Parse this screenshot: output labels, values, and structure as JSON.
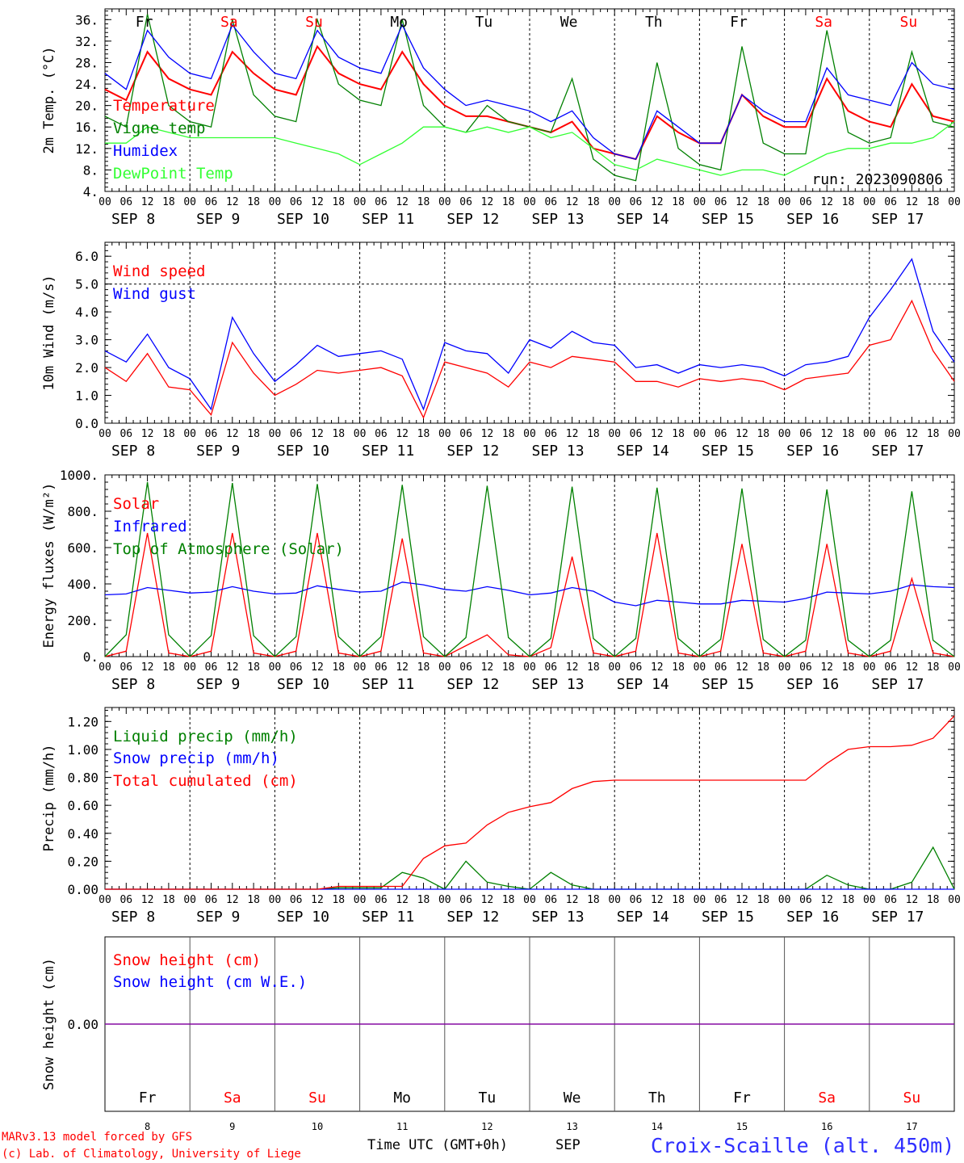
{
  "run_label": "run: 2023090806",
  "footer": {
    "model": "MARv3.13 model forced by GFS",
    "credit": "(c) Lab. of Climatology, University of Liege",
    "axis_title": "Time UTC (GMT+0h)",
    "month": "SEP",
    "station": "Croix-Scaille (alt. 450m)"
  },
  "days": [
    {
      "date": "SEP  8",
      "num": "8",
      "dow": "Fr",
      "weekend": false
    },
    {
      "date": "SEP  9",
      "num": "9",
      "dow": "Sa",
      "weekend": true
    },
    {
      "date": "SEP 10",
      "num": "10",
      "dow": "Su",
      "weekend": true
    },
    {
      "date": "SEP 11",
      "num": "11",
      "dow": "Mo",
      "weekend": false
    },
    {
      "date": "SEP 12",
      "num": "12",
      "dow": "Tu",
      "weekend": false
    },
    {
      "date": "SEP 13",
      "num": "13",
      "dow": "We",
      "weekend": false
    },
    {
      "date": "SEP 14",
      "num": "14",
      "dow": "Th",
      "weekend": false
    },
    {
      "date": "SEP 15",
      "num": "15",
      "dow": "Fr",
      "weekend": false
    },
    {
      "date": "SEP 16",
      "num": "16",
      "dow": "Sa",
      "weekend": true
    },
    {
      "date": "SEP 17",
      "num": "17",
      "dow": "Su",
      "weekend": true
    }
  ],
  "hour_ticks": [
    "00",
    "06",
    "12",
    "18"
  ],
  "final_hour_tick": "00",
  "colors": {
    "red": "#ff0000",
    "green": "#008000",
    "blue": "#0000ff",
    "lightgreen": "#33ff33",
    "purple": "#8000a0"
  },
  "chart_data": [
    {
      "type": "line",
      "ylabel": "2m Temp. (°C)",
      "ylim": [
        4,
        38
      ],
      "yticks": [
        "4.",
        "8.",
        "12.",
        "16.",
        "20.",
        "24.",
        "28.",
        "32.",
        "36."
      ],
      "grid": "vertical dashed at midnight",
      "x": [
        0,
        6,
        12,
        18,
        24,
        30,
        36,
        42,
        48,
        54,
        60,
        66,
        72,
        78,
        84,
        90,
        96,
        102,
        108,
        114,
        120,
        126,
        132,
        138,
        144,
        150,
        156,
        162,
        168,
        174,
        180,
        186,
        192,
        198,
        204,
        210,
        216,
        222,
        228,
        234,
        240
      ],
      "series": [
        {
          "name": "Temperature",
          "color": "red",
          "values": [
            23,
            21,
            30,
            25,
            23,
            22,
            30,
            26,
            23,
            22,
            31,
            26,
            24,
            23,
            30,
            24,
            20,
            18,
            18,
            17,
            16,
            15,
            17,
            12,
            11,
            10,
            18,
            15,
            13,
            13,
            22,
            18,
            16,
            16,
            25,
            19,
            17,
            16,
            24,
            18,
            17
          ]
        },
        {
          "name": "Vigne temp",
          "color": "green",
          "values": [
            18,
            16,
            37,
            20,
            17,
            16,
            36,
            22,
            18,
            17,
            36,
            24,
            21,
            20,
            36,
            20,
            16,
            15,
            20,
            17,
            16,
            15,
            25,
            10,
            7,
            6,
            28,
            12,
            9,
            8,
            31,
            13,
            11,
            11,
            34,
            15,
            13,
            14,
            30,
            17,
            16
          ]
        },
        {
          "name": "Humidex",
          "color": "blue",
          "values": [
            26,
            23,
            34,
            29,
            26,
            25,
            35,
            30,
            26,
            25,
            34,
            29,
            27,
            26,
            35,
            27,
            23,
            20,
            21,
            20,
            19,
            17,
            19,
            14,
            11,
            10,
            19,
            16,
            13,
            13,
            22,
            19,
            17,
            17,
            27,
            22,
            21,
            20,
            28,
            24,
            23
          ]
        },
        {
          "name": "DewPoint Temp",
          "color": "lightgreen",
          "values": [
            13,
            13,
            16,
            15,
            14,
            14,
            14,
            14,
            14,
            13,
            12,
            11,
            9,
            11,
            13,
            16,
            16,
            15,
            16,
            15,
            16,
            14,
            15,
            12,
            9,
            8,
            10,
            9,
            8,
            7,
            8,
            8,
            7,
            9,
            11,
            12,
            12,
            13,
            13,
            14,
            17
          ]
        }
      ]
    },
    {
      "type": "line",
      "ylabel": "10m Wind (m/s)",
      "ylim": [
        0,
        6.5
      ],
      "yticks": [
        "0.0",
        "1.0",
        "2.0",
        "3.0",
        "4.0",
        "5.0",
        "6.0"
      ],
      "grid": "vertical dashed at midnight, horizontal dashed at 5.0",
      "x": [
        0,
        6,
        12,
        18,
        24,
        30,
        36,
        42,
        48,
        54,
        60,
        66,
        72,
        78,
        84,
        90,
        96,
        102,
        108,
        114,
        120,
        126,
        132,
        138,
        144,
        150,
        156,
        162,
        168,
        174,
        180,
        186,
        192,
        198,
        204,
        210,
        216,
        222,
        228,
        234,
        240
      ],
      "series": [
        {
          "name": "Wind speed",
          "color": "red",
          "values": [
            2.0,
            1.5,
            2.5,
            1.3,
            1.2,
            0.3,
            2.9,
            1.8,
            1.0,
            1.4,
            1.9,
            1.8,
            1.9,
            2.0,
            1.7,
            0.2,
            2.2,
            2.0,
            1.8,
            1.3,
            2.2,
            2.0,
            2.4,
            2.3,
            2.2,
            1.5,
            1.5,
            1.3,
            1.6,
            1.5,
            1.6,
            1.5,
            1.2,
            1.6,
            1.7,
            1.8,
            2.8,
            3.0,
            4.4,
            2.6,
            1.5
          ]
        },
        {
          "name": "Wind gust",
          "color": "blue",
          "values": [
            2.6,
            2.2,
            3.2,
            2.0,
            1.6,
            0.5,
            3.8,
            2.5,
            1.5,
            2.1,
            2.8,
            2.4,
            2.5,
            2.6,
            2.3,
            0.5,
            2.9,
            2.6,
            2.5,
            1.8,
            3.0,
            2.7,
            3.3,
            2.9,
            2.8,
            2.0,
            2.1,
            1.8,
            2.1,
            2.0,
            2.1,
            2.0,
            1.7,
            2.1,
            2.2,
            2.4,
            3.8,
            4.8,
            5.9,
            3.3,
            2.2
          ]
        }
      ]
    },
    {
      "type": "line",
      "ylabel": "Energy fluxes (W/m²)",
      "ylim": [
        0,
        1000
      ],
      "yticks": [
        "0.",
        "200.",
        "400.",
        "600.",
        "800.",
        "1000."
      ],
      "grid": "vertical dashed at midnight",
      "x": [
        0,
        6,
        12,
        18,
        24,
        30,
        36,
        42,
        48,
        54,
        60,
        66,
        72,
        78,
        84,
        90,
        96,
        102,
        108,
        114,
        120,
        126,
        132,
        138,
        144,
        150,
        156,
        162,
        168,
        174,
        180,
        186,
        192,
        198,
        204,
        210,
        216,
        222,
        228,
        234,
        240
      ],
      "series": [
        {
          "name": "Solar",
          "color": "red",
          "values": [
            0,
            30,
            680,
            20,
            0,
            30,
            680,
            20,
            0,
            30,
            680,
            20,
            0,
            30,
            650,
            20,
            0,
            60,
            120,
            10,
            0,
            50,
            550,
            20,
            0,
            30,
            680,
            20,
            0,
            30,
            620,
            20,
            0,
            30,
            620,
            20,
            0,
            30,
            430,
            20,
            0
          ]
        },
        {
          "name": "Infrared",
          "color": "blue",
          "values": [
            340,
            345,
            380,
            365,
            350,
            355,
            385,
            360,
            345,
            350,
            390,
            370,
            355,
            360,
            410,
            395,
            370,
            360,
            385,
            365,
            340,
            350,
            380,
            360,
            300,
            280,
            310,
            300,
            290,
            290,
            310,
            305,
            300,
            320,
            355,
            350,
            345,
            360,
            395,
            385,
            380
          ]
        },
        {
          "name": "Top of Atmosphere (Solar)",
          "color": "green",
          "values": [
            0,
            120,
            960,
            120,
            0,
            115,
            955,
            115,
            0,
            110,
            950,
            110,
            0,
            110,
            945,
            110,
            0,
            105,
            940,
            105,
            0,
            100,
            935,
            100,
            0,
            100,
            930,
            100,
            0,
            95,
            925,
            95,
            0,
            90,
            920,
            90,
            0,
            90,
            910,
            90,
            0
          ]
        }
      ]
    },
    {
      "type": "line",
      "ylabel": "Precip (mm/h)",
      "ylim": [
        0,
        1.3
      ],
      "yticks": [
        "0.00",
        "0.20",
        "0.40",
        "0.60",
        "0.80",
        "1.00",
        "1.20"
      ],
      "grid": "vertical dashed at midnight",
      "x": [
        0,
        6,
        12,
        18,
        24,
        30,
        36,
        42,
        48,
        54,
        60,
        66,
        72,
        78,
        84,
        90,
        96,
        102,
        108,
        114,
        120,
        126,
        132,
        138,
        144,
        150,
        156,
        162,
        168,
        174,
        180,
        186,
        192,
        198,
        204,
        210,
        216,
        222,
        228,
        234,
        240
      ],
      "series": [
        {
          "name": "Liquid precip (mm/h)",
          "color": "green",
          "values": [
            0,
            0,
            0,
            0,
            0,
            0,
            0,
            0,
            0,
            0,
            0,
            0.01,
            0.01,
            0.01,
            0.12,
            0.08,
            0,
            0.2,
            0.05,
            0.02,
            0,
            0.12,
            0.03,
            0,
            0,
            0,
            0,
            0,
            0,
            0,
            0,
            0,
            0,
            0,
            0.1,
            0.03,
            0,
            0,
            0.05,
            0.3,
            0
          ]
        },
        {
          "name": "Snow precip (mm/h)",
          "color": "blue",
          "values": [
            0,
            0,
            0,
            0,
            0,
            0,
            0,
            0,
            0,
            0,
            0,
            0,
            0,
            0,
            0,
            0,
            0,
            0,
            0,
            0,
            0,
            0,
            0,
            0,
            0,
            0,
            0,
            0,
            0,
            0,
            0,
            0,
            0,
            0,
            0,
            0,
            0,
            0,
            0,
            0,
            0
          ]
        },
        {
          "name": "Total cumulated (cm)",
          "color": "red",
          "values": [
            0,
            0,
            0,
            0,
            0,
            0,
            0,
            0,
            0,
            0,
            0,
            0.02,
            0.02,
            0.02,
            0.02,
            0.22,
            0.31,
            0.33,
            0.46,
            0.55,
            0.59,
            0.62,
            0.72,
            0.77,
            0.78,
            0.78,
            0.78,
            0.78,
            0.78,
            0.78,
            0.78,
            0.78,
            0.78,
            0.78,
            0.9,
            1.0,
            1.02,
            1.02,
            1.03,
            1.08,
            1.24
          ]
        }
      ]
    },
    {
      "type": "line",
      "ylabel": "Snow height (cm)",
      "ylim": [
        -1,
        1
      ],
      "yticks": [
        "0.00"
      ],
      "grid": "vertical solid at midnight",
      "x": [
        0,
        240
      ],
      "series": [
        {
          "name": "Snow height (cm)",
          "color": "red",
          "values": [
            0,
            0
          ]
        },
        {
          "name": "Snow height (cm W.E.)",
          "color": "blue",
          "values": [
            0,
            0
          ]
        }
      ]
    }
  ]
}
